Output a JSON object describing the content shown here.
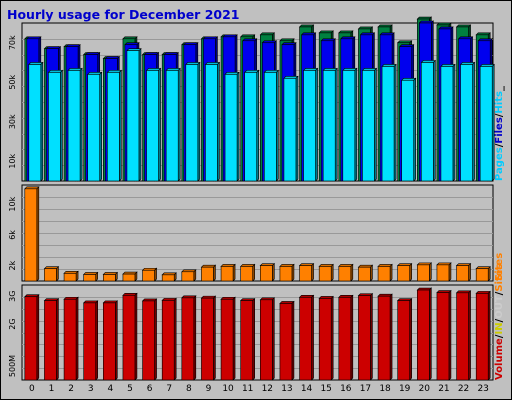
{
  "chart_data": {
    "type": "bar",
    "title": "Hourly usage for December 2021",
    "categories": [
      "0",
      "1",
      "2",
      "3",
      "4",
      "5",
      "6",
      "7",
      "8",
      "9",
      "10",
      "11",
      "12",
      "13",
      "14",
      "15",
      "16",
      "17",
      "18",
      "19",
      "20",
      "21",
      "22",
      "23"
    ],
    "panels": [
      {
        "name": "requests",
        "ylim": [
          0,
          80000
        ],
        "ytick_values": [
          10000,
          30000,
          50000,
          70000
        ],
        "ytick_labels": [
          "10k",
          "30k",
          "50k",
          "70k"
        ],
        "legend": [
          {
            "label": "Pages",
            "color": "#00ccff"
          },
          {
            "label": "/",
            "color": "#000000"
          },
          {
            "label": "Files",
            "color": "#0000cc"
          },
          {
            "label": "/",
            "color": "#000000"
          },
          {
            "label": "Hits",
            "color": "#00ccff"
          },
          {
            "label": "_",
            "color": "#000000"
          }
        ],
        "series": [
          {
            "name": "Hits",
            "color": "#008040",
            "values": [
              72000,
              67000,
              68000,
              64000,
              62000,
              72000,
              64000,
              64000,
              69000,
              72000,
              73000,
              73000,
              74000,
              71000,
              78000,
              75000,
              75000,
              77000,
              78000,
              70000,
              82000,
              79000,
              78000,
              74000
            ]
          },
          {
            "name": "Files",
            "color": "#0000ee",
            "values": [
              72000,
              67000,
              68000,
              64000,
              62000,
              69000,
              64000,
              64000,
              69000,
              72000,
              73000,
              71000,
              70000,
              69000,
              74000,
              71000,
              72000,
              74000,
              74000,
              68000,
              80000,
              77000,
              72000,
              71000
            ]
          },
          {
            "name": "Pages",
            "color": "#00e0ff",
            "values": [
              59000,
              55000,
              56000,
              54000,
              55000,
              66000,
              56000,
              56000,
              59000,
              59000,
              54000,
              55000,
              55000,
              52000,
              56000,
              56000,
              56000,
              56000,
              58000,
              51000,
              60000,
              58000,
              59000,
              58000
            ]
          }
        ]
      },
      {
        "name": "sites",
        "ylim": [
          0,
          12500
        ],
        "ytick_values": [
          2000,
          6000,
          10000
        ],
        "ytick_labels": [
          "2k",
          "6k",
          "10k"
        ],
        "legend": [
          {
            "label": "Sites",
            "color": "#ff8000"
          }
        ],
        "series": [
          {
            "name": "Sites",
            "color": "#ff8000",
            "values": [
              12000,
              1600,
              1000,
              850,
              850,
              900,
              1400,
              800,
              1200,
              1800,
              1900,
              1900,
              2000,
              1900,
              2000,
              1900,
              1900,
              1800,
              1900,
              2000,
              2100,
              2100,
              2000,
              1600
            ]
          }
        ]
      },
      {
        "name": "volume",
        "ylim": [
          0,
          3400
        ],
        "ytick_values": [
          500,
          2000,
          3000
        ],
        "ytick_labels": [
          "500M",
          "2G",
          "3G"
        ],
        "legend": [
          {
            "label": "Volume",
            "color": "#cc0000"
          },
          {
            "label": "/",
            "color": "#000000"
          },
          {
            "label": "IN",
            "color": "#cccc00"
          },
          {
            "label": "/",
            "color": "#000000"
          },
          {
            "label": "OUT",
            "color": "#cccccc"
          },
          {
            "label": "/",
            "color": "#000000"
          },
          {
            "label": "Sites",
            "color": "#ff8000"
          }
        ],
        "series": [
          {
            "name": "Volume",
            "color": "#cc0000",
            "values": [
              2980,
              2840,
              2890,
              2760,
              2760,
              3030,
              2830,
              2850,
              2940,
              2930,
              2890,
              2840,
              2870,
              2740,
              2960,
              2920,
              2960,
              3020,
              3000,
              2840,
              3220,
              3130,
              3120,
              3100
            ]
          }
        ]
      }
    ]
  }
}
